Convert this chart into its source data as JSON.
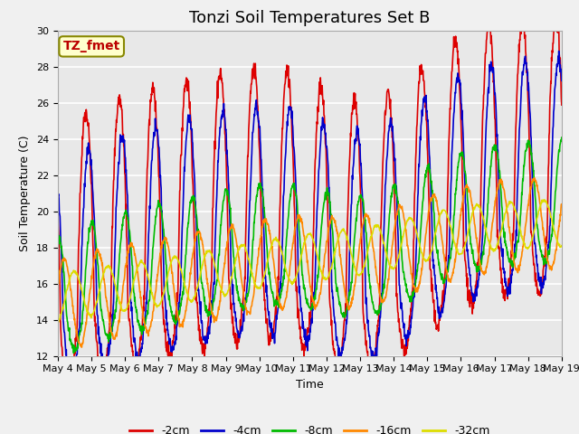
{
  "title": "Tonzi Soil Temperatures Set B",
  "xlabel": "Time",
  "ylabel": "Soil Temperature (C)",
  "annotation": "TZ_fmet",
  "annotation_color": "#bb0000",
  "annotation_bg": "#ffffcc",
  "annotation_border": "#999900",
  "ylim": [
    12,
    30
  ],
  "legend": [
    "-2cm",
    "-4cm",
    "-8cm",
    "-16cm",
    "-32cm"
  ],
  "legend_colors": [
    "#dd0000",
    "#0000cc",
    "#00bb00",
    "#ff8800",
    "#dddd00"
  ],
  "plot_bg": "#e8e8e8",
  "title_fontsize": 13,
  "axis_fontsize": 9,
  "tick_fontsize": 8,
  "legend_fontsize": 9,
  "x_tick_labels": [
    "May 4",
    "May 5",
    "May 6",
    "May 7",
    "May 8",
    "May 9",
    "May 10",
    "May 11",
    "May 12",
    "May 13",
    "May 14",
    "May 15",
    "May 16",
    "May 17",
    "May 18",
    "May 19"
  ]
}
